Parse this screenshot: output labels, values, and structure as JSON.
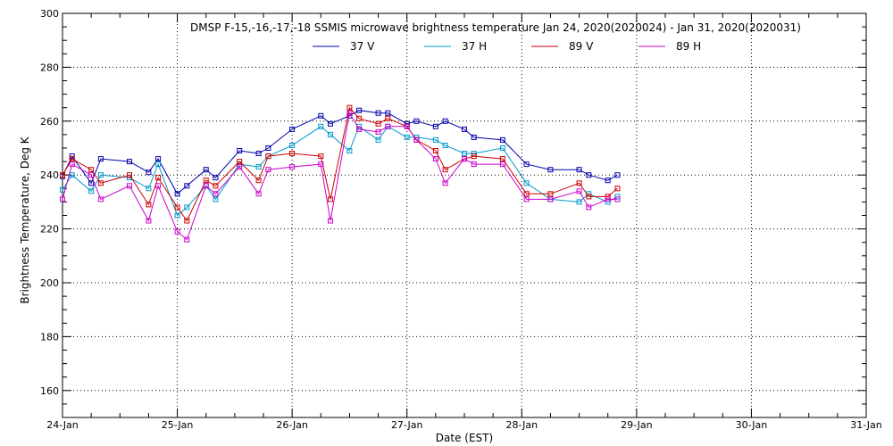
{
  "chart_data": {
    "type": "line",
    "title": "DMSP F-15,-16,-17,-18 SSMIS microwave brightness temperature Jan 24, 2020(2020024) - Jan 31, 2020(2020031)",
    "xlabel": "Date (EST)",
    "ylabel": "Brightness Temperature, Deg K",
    "xlim": [
      "2020-01-24 00:00",
      "2020-01-31 00:00"
    ],
    "ylim": [
      150,
      300
    ],
    "x_ticks": [
      "24-Jan",
      "25-Jan",
      "26-Jan",
      "27-Jan",
      "28-Jan",
      "29-Jan",
      "30-Jan",
      "31-Jan"
    ],
    "y_ticks": [
      160,
      180,
      200,
      220,
      240,
      260,
      280,
      300
    ],
    "grid": true,
    "legend_position": "top",
    "series": [
      {
        "name": "37 V",
        "color": "#0000aa",
        "points": [
          [
            "2020-01-24 00:00",
            239.5
          ],
          [
            "2020-01-24 02:00",
            247
          ],
          [
            "2020-01-24 06:00",
            237
          ],
          [
            "2020-01-24 08:00",
            246
          ],
          [
            "2020-01-24 14:00",
            245
          ],
          [
            "2020-01-24 18:00",
            241
          ],
          [
            "2020-01-24 20:00",
            246
          ],
          [
            "2020-01-25 00:00",
            233
          ],
          [
            "2020-01-25 02:00",
            236
          ],
          [
            "2020-01-25 06:00",
            242
          ],
          [
            "2020-01-25 08:00",
            239
          ],
          [
            "2020-01-25 13:00",
            249
          ],
          [
            "2020-01-25 17:00",
            248
          ],
          [
            "2020-01-25 19:00",
            250
          ],
          [
            "2020-01-26 00:00",
            257
          ],
          [
            "2020-01-26 06:00",
            262
          ],
          [
            "2020-01-26 08:00",
            259
          ],
          [
            "2020-01-26 12:00",
            262
          ],
          [
            "2020-01-26 14:00",
            264
          ],
          [
            "2020-01-26 18:00",
            263
          ],
          [
            "2020-01-26 20:00",
            263
          ],
          [
            "2020-01-27 00:00",
            259
          ],
          [
            "2020-01-27 02:00",
            260
          ],
          [
            "2020-01-27 06:00",
            258
          ],
          [
            "2020-01-27 08:00",
            260
          ],
          [
            "2020-01-27 12:00",
            257
          ],
          [
            "2020-01-27 14:00",
            254
          ],
          [
            "2020-01-27 20:00",
            253
          ],
          [
            "2020-01-28 01:00",
            244
          ],
          [
            "2020-01-28 06:00",
            242
          ],
          [
            "2020-01-28 12:00",
            242
          ],
          [
            "2020-01-28 14:00",
            240
          ],
          [
            "2020-01-28 18:00",
            238
          ],
          [
            "2020-01-28 20:00",
            240
          ]
        ]
      },
      {
        "name": "37 H",
        "color": "#0099cc",
        "points": [
          [
            "2020-01-24 00:00",
            234.5
          ],
          [
            "2020-01-24 02:00",
            240
          ],
          [
            "2020-01-24 06:00",
            234
          ],
          [
            "2020-01-24 08:00",
            240
          ],
          [
            "2020-01-24 14:00",
            239
          ],
          [
            "2020-01-24 18:00",
            235
          ],
          [
            "2020-01-24 20:00",
            244
          ],
          [
            "2020-01-25 00:00",
            225
          ],
          [
            "2020-01-25 02:00",
            228
          ],
          [
            "2020-01-25 06:00",
            236
          ],
          [
            "2020-01-25 08:00",
            231
          ],
          [
            "2020-01-25 13:00",
            244
          ],
          [
            "2020-01-25 17:00",
            243
          ],
          [
            "2020-01-25 19:00",
            247
          ],
          [
            "2020-01-26 00:00",
            251
          ],
          [
            "2020-01-26 06:00",
            258
          ],
          [
            "2020-01-26 08:00",
            255
          ],
          [
            "2020-01-26 12:00",
            249
          ],
          [
            "2020-01-26 14:00",
            258
          ],
          [
            "2020-01-26 18:00",
            253
          ],
          [
            "2020-01-26 20:00",
            258
          ],
          [
            "2020-01-27 00:00",
            254
          ],
          [
            "2020-01-27 02:00",
            254
          ],
          [
            "2020-01-27 06:00",
            253
          ],
          [
            "2020-01-27 08:00",
            251
          ],
          [
            "2020-01-27 12:00",
            248
          ],
          [
            "2020-01-27 14:00",
            248
          ],
          [
            "2020-01-27 20:00",
            250
          ],
          [
            "2020-01-28 01:00",
            237
          ],
          [
            "2020-01-28 06:00",
            231
          ],
          [
            "2020-01-28 12:00",
            230
          ],
          [
            "2020-01-28 14:00",
            233
          ],
          [
            "2020-01-28 18:00",
            230
          ],
          [
            "2020-01-28 20:00",
            232
          ]
        ]
      },
      {
        "name": "89 V",
        "color": "#cc0000",
        "points": [
          [
            "2020-01-24 00:00",
            240
          ],
          [
            "2020-01-24 02:00",
            246
          ],
          [
            "2020-01-24 06:00",
            242
          ],
          [
            "2020-01-24 08:00",
            237
          ],
          [
            "2020-01-24 14:00",
            240
          ],
          [
            "2020-01-24 18:00",
            229
          ],
          [
            "2020-01-24 20:00",
            239
          ],
          [
            "2020-01-25 00:00",
            228
          ],
          [
            "2020-01-25 02:00",
            223
          ],
          [
            "2020-01-25 06:00",
            238
          ],
          [
            "2020-01-25 08:00",
            236
          ],
          [
            "2020-01-25 13:00",
            245
          ],
          [
            "2020-01-25 17:00",
            238
          ],
          [
            "2020-01-25 19:00",
            247
          ],
          [
            "2020-01-26 00:00",
            248
          ],
          [
            "2020-01-26 06:00",
            247
          ],
          [
            "2020-01-26 08:00",
            231
          ],
          [
            "2020-01-26 12:00",
            265
          ],
          [
            "2020-01-26 14:00",
            261
          ],
          [
            "2020-01-26 18:00",
            259
          ],
          [
            "2020-01-26 20:00",
            261
          ],
          [
            "2020-01-27 00:00",
            258
          ],
          [
            "2020-01-27 02:00",
            253
          ],
          [
            "2020-01-27 06:00",
            249
          ],
          [
            "2020-01-27 08:00",
            242
          ],
          [
            "2020-01-27 12:00",
            246
          ],
          [
            "2020-01-27 14:00",
            247
          ],
          [
            "2020-01-27 20:00",
            246
          ],
          [
            "2020-01-28 01:00",
            233
          ],
          [
            "2020-01-28 06:00",
            233
          ],
          [
            "2020-01-28 12:00",
            237
          ],
          [
            "2020-01-28 14:00",
            232
          ],
          [
            "2020-01-28 18:00",
            232
          ],
          [
            "2020-01-28 20:00",
            235
          ]
        ]
      },
      {
        "name": "89 H",
        "color": "#cc00cc",
        "points": [
          [
            "2020-01-24 00:00",
            231
          ],
          [
            "2020-01-24 02:00",
            244
          ],
          [
            "2020-01-24 06:00",
            240
          ],
          [
            "2020-01-24 08:00",
            231
          ],
          [
            "2020-01-24 14:00",
            236
          ],
          [
            "2020-01-24 18:00",
            223
          ],
          [
            "2020-01-24 20:00",
            236
          ],
          [
            "2020-01-25 00:00",
            219
          ],
          [
            "2020-01-25 02:00",
            216
          ],
          [
            "2020-01-25 06:00",
            236
          ],
          [
            "2020-01-25 08:00",
            233
          ],
          [
            "2020-01-25 13:00",
            243
          ],
          [
            "2020-01-25 17:00",
            233
          ],
          [
            "2020-01-25 19:00",
            242
          ],
          [
            "2020-01-26 00:00",
            243
          ],
          [
            "2020-01-26 06:00",
            244
          ],
          [
            "2020-01-26 08:00",
            223
          ],
          [
            "2020-01-26 12:00",
            263
          ],
          [
            "2020-01-26 14:00",
            257
          ],
          [
            "2020-01-26 18:00",
            256
          ],
          [
            "2020-01-26 20:00",
            258
          ],
          [
            "2020-01-27 00:00",
            258
          ],
          [
            "2020-01-27 02:00",
            253
          ],
          [
            "2020-01-27 06:00",
            246
          ],
          [
            "2020-01-27 08:00",
            237
          ],
          [
            "2020-01-27 12:00",
            246
          ],
          [
            "2020-01-27 14:00",
            244
          ],
          [
            "2020-01-27 20:00",
            244
          ],
          [
            "2020-01-28 01:00",
            231
          ],
          [
            "2020-01-28 06:00",
            231
          ],
          [
            "2020-01-28 12:00",
            234
          ],
          [
            "2020-01-28 14:00",
            228
          ],
          [
            "2020-01-28 18:00",
            231
          ],
          [
            "2020-01-28 20:00",
            231
          ]
        ]
      }
    ]
  }
}
